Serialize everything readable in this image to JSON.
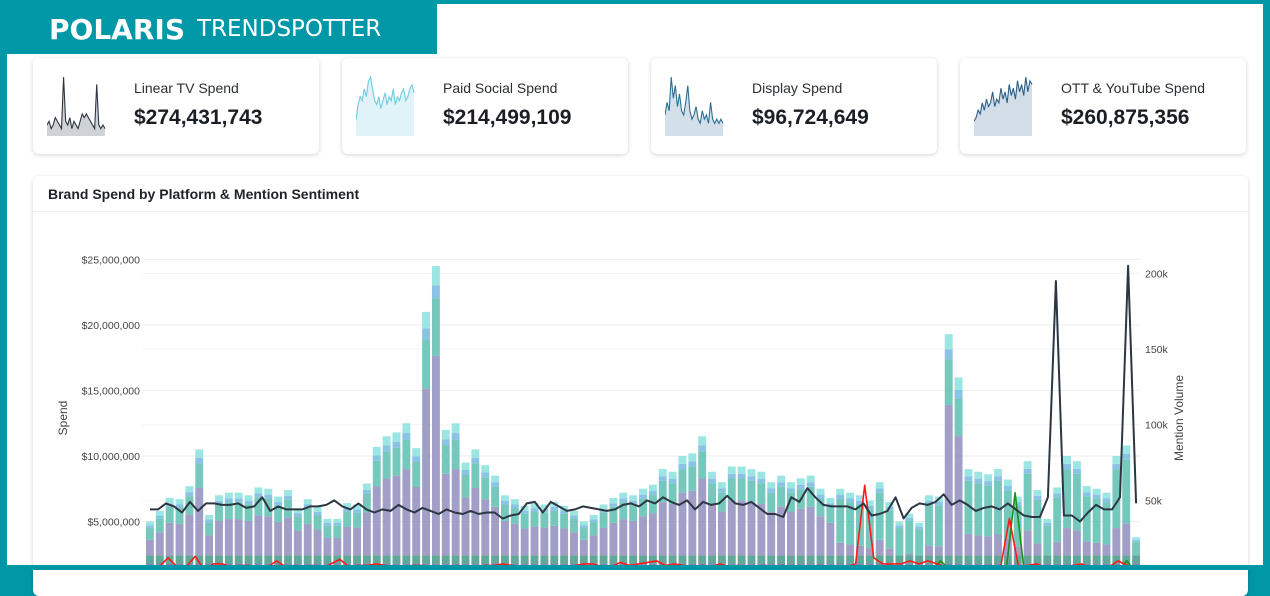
{
  "brand": {
    "logo": "POLARIS",
    "product": "TRENDSPOTTER",
    "accent": "#0097a7"
  },
  "kpis": [
    {
      "label": "Linear TV Spend",
      "value": "$274,431,743",
      "color": "#2d3540",
      "fill": "#cfd3d8",
      "spark": [
        3,
        4,
        2,
        3,
        5,
        4,
        3,
        2,
        16,
        4,
        3,
        5,
        2,
        4,
        3,
        2,
        4,
        6,
        5,
        6,
        5,
        4,
        3,
        2,
        14,
        3,
        2,
        3,
        2
      ]
    },
    {
      "label": "Paid Social Spend",
      "value": "$214,499,109",
      "color": "#6fcbe0",
      "fill": "#e0f3f9",
      "spark": [
        4,
        8,
        10,
        9,
        12,
        10,
        14,
        15,
        12,
        9,
        8,
        10,
        7,
        9,
        11,
        8,
        10,
        9,
        12,
        8,
        10,
        9,
        11,
        12,
        9,
        10,
        12,
        13,
        11
      ]
    },
    {
      "label": "Display Spend",
      "value": "$96,724,649",
      "color": "#2e6f96",
      "fill": "#d3e0ea",
      "spark": [
        5,
        8,
        6,
        14,
        9,
        12,
        7,
        10,
        6,
        5,
        8,
        12,
        6,
        4,
        5,
        7,
        4,
        3,
        6,
        4,
        5,
        3,
        8,
        4,
        3,
        4,
        3,
        4,
        3
      ]
    },
    {
      "label": "OTT & YouTube Spend",
      "value": "$260,875,356",
      "color": "#2a5f8a",
      "fill": "#d2dde8",
      "spark": [
        4,
        5,
        7,
        6,
        9,
        7,
        10,
        8,
        9,
        12,
        8,
        10,
        9,
        13,
        10,
        12,
        9,
        14,
        11,
        13,
        10,
        15,
        12,
        14,
        11,
        16,
        12,
        15,
        14
      ]
    }
  ],
  "panel": {
    "title": "Brand Spend by Platform & Mention Sentiment"
  },
  "chart_data": {
    "type": "bar",
    "stacked": true,
    "ylabel": "Spend",
    "y2label": "Mention Volume",
    "ylim": [
      0,
      25000000
    ],
    "y2lim": [
      0,
      210000
    ],
    "yticks": [
      "$5,000,000",
      "$10,000,000",
      "$15,000,000",
      "$20,000,000",
      "$25,000,000"
    ],
    "y2ticks": [
      "50k",
      "100k",
      "150k",
      "200k"
    ],
    "grid": true,
    "colors": {
      "seg1": "#2f7296",
      "seg2": "#6f7ba3",
      "seg3": "#4f9f8c",
      "purple": "#9793c2",
      "teal": "#66c2b5",
      "lightblue": "#7dbde0",
      "cyan": "#90e2df",
      "volume": "#2d3744",
      "negative": "#ff1a1a",
      "positive": "#1a8f1a"
    },
    "spend_total_millions": [
      5.0,
      5.8,
      6.8,
      6.7,
      7.7,
      10.5,
      5.5,
      7.0,
      7.2,
      7.2,
      7.0,
      7.6,
      7.5,
      6.9,
      7.4,
      6.0,
      6.7,
      6.1,
      5.2,
      5.2,
      6.4,
      6.3,
      7.9,
      10.7,
      11.5,
      11.8,
      12.5,
      10.6,
      21.0,
      24.5,
      12.0,
      12.5,
      9.5,
      10.5,
      9.3,
      8.5,
      7.0,
      6.7,
      6.2,
      6.4,
      6.3,
      6.5,
      6.2,
      5.8,
      5.0,
      5.5,
      6.3,
      6.8,
      7.2,
      7.0,
      7.5,
      7.8,
      9.0,
      8.8,
      10.0,
      10.2,
      11.5,
      8.8,
      8.0,
      9.2,
      9.2,
      9.0,
      8.8,
      8.0,
      8.5,
      8.0,
      8.3,
      8.5,
      7.5,
      6.8,
      7.5,
      7.2,
      7.0,
      6.6,
      8.0,
      6.5,
      5.0,
      5.6,
      4.9,
      7.0,
      6.9,
      19.3,
      16.0,
      9.0,
      8.8,
      8.6,
      9.0,
      8.2,
      6.9,
      9.6,
      7.4,
      5.2,
      7.6,
      10.0,
      9.6,
      7.7,
      7.5,
      7.2,
      10.0,
      10.8,
      3.8
    ],
    "mention_volume": [
      44,
      44,
      48,
      46,
      42,
      49,
      43,
      48,
      48,
      47,
      47,
      48,
      45,
      46,
      52,
      43,
      46,
      44,
      44,
      44,
      46,
      46,
      47,
      50,
      46,
      44,
      48,
      44,
      42,
      44,
      43,
      47,
      44,
      42,
      45,
      43,
      41,
      44,
      42,
      41,
      43,
      41,
      42,
      42,
      38,
      40,
      41,
      48,
      49,
      42,
      49,
      46,
      43,
      44,
      46,
      45,
      44,
      43,
      44,
      47,
      48,
      46,
      50,
      48,
      52,
      49,
      47,
      50,
      44,
      49,
      47,
      48,
      53,
      48,
      47,
      49,
      45,
      41,
      41,
      39,
      52,
      49,
      58,
      52,
      47,
      46,
      46,
      46,
      44,
      48,
      40,
      41,
      43,
      52,
      38,
      45,
      48,
      47,
      49,
      54,
      47,
      50,
      47,
      43,
      45,
      46,
      44,
      48,
      44,
      40,
      39,
      39,
      52,
      195,
      40,
      40,
      36,
      42,
      47,
      44,
      44,
      52,
      205,
      48
    ],
    "negative_volume": [
      4,
      6,
      12,
      6,
      6,
      13,
      4,
      8,
      8,
      6,
      7,
      7,
      5,
      6,
      10,
      6,
      7,
      6,
      7,
      5,
      8,
      11,
      6,
      7,
      7,
      8,
      7,
      6,
      5,
      7,
      7,
      6,
      5,
      6,
      7,
      6,
      6,
      7,
      7,
      8,
      7,
      6,
      5,
      6,
      4,
      5,
      6,
      7,
      8,
      8,
      6,
      6,
      9,
      7,
      8,
      9,
      10,
      7,
      8,
      7,
      6,
      7,
      6,
      8,
      6,
      7,
      5,
      6,
      7,
      6,
      7,
      6,
      5,
      6,
      7,
      6,
      5,
      6,
      8,
      60,
      12,
      8,
      8,
      8,
      10,
      8,
      10,
      8,
      6,
      5,
      6,
      5,
      5,
      7,
      5,
      38,
      6,
      7,
      8,
      6,
      5,
      5,
      7,
      8,
      5,
      6,
      6,
      10,
      7,
      4
    ],
    "positive_volume": [
      2,
      2,
      3,
      2,
      2,
      3,
      2,
      2,
      2,
      2,
      2,
      2,
      2,
      2,
      3,
      2,
      2,
      2,
      2,
      2,
      2,
      3,
      2,
      2,
      2,
      2,
      2,
      2,
      2,
      2,
      2,
      2,
      2,
      2,
      2,
      2,
      2,
      2,
      2,
      2,
      2,
      2,
      2,
      2,
      2,
      2,
      2,
      2,
      2,
      2,
      2,
      2,
      2,
      2,
      2,
      2,
      2,
      2,
      2,
      2,
      2,
      2,
      2,
      2,
      2,
      2,
      2,
      2,
      2,
      2,
      2,
      2,
      2,
      2,
      2,
      2,
      2,
      2,
      2,
      2,
      2,
      2,
      2,
      2,
      4,
      10,
      4,
      2,
      2,
      2,
      2,
      2,
      2,
      55,
      2,
      2,
      2,
      2,
      2,
      2,
      2,
      5,
      2,
      2,
      2,
      10,
      2
    ]
  }
}
